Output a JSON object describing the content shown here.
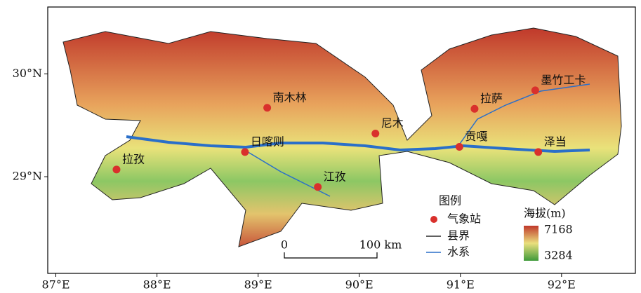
{
  "map": {
    "lonlim": [
      86.92,
      92.73
    ],
    "latlim": [
      28.06,
      30.65
    ],
    "xticks": [
      {
        "value": 87,
        "label": "87°E"
      },
      {
        "value": 88,
        "label": "88°E"
      },
      {
        "value": 89,
        "label": "89°E"
      },
      {
        "value": 90,
        "label": "90°E"
      },
      {
        "value": 91,
        "label": "91°E"
      },
      {
        "value": 92,
        "label": "92°E"
      }
    ],
    "yticks": [
      {
        "value": 29,
        "label": "29°N"
      },
      {
        "value": 30,
        "label": "30°N"
      }
    ],
    "stations": [
      {
        "name": "拉孜",
        "lon": 87.6,
        "lat": 29.07
      },
      {
        "name": "日喀则",
        "lon": 88.87,
        "lat": 29.24
      },
      {
        "name": "南木林",
        "lon": 89.09,
        "lat": 29.67
      },
      {
        "name": "尼木",
        "lon": 90.16,
        "lat": 29.42
      },
      {
        "name": "江孜",
        "lon": 89.59,
        "lat": 28.9
      },
      {
        "name": "贡嘎",
        "lon": 90.99,
        "lat": 29.29
      },
      {
        "name": "拉萨",
        "lon": 91.14,
        "lat": 29.66
      },
      {
        "name": "墨竹工卡",
        "lon": 91.74,
        "lat": 29.84
      },
      {
        "name": "泽当",
        "lon": 91.77,
        "lat": 29.24
      }
    ],
    "scale_bar": {
      "start": "0",
      "end": "100 km"
    },
    "legend": {
      "title": "图例",
      "station": "气象站",
      "county": "县界",
      "river": "水系"
    },
    "elevation": {
      "title": "海拔(m)",
      "max": 7168,
      "min": 3284,
      "max_color": "#c0392b",
      "min_color": "#3f9a3a"
    }
  }
}
